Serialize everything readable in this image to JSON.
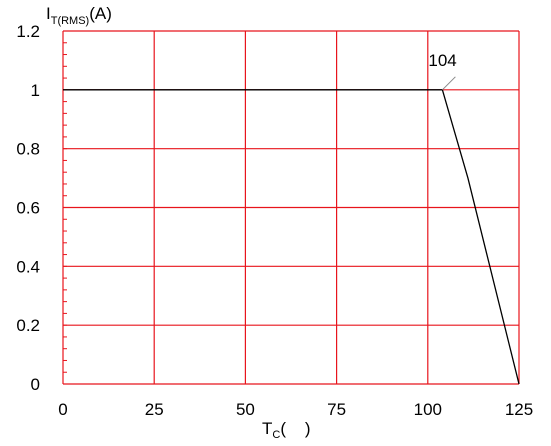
{
  "chart_data": {
    "type": "line",
    "xlabel_main": "T",
    "xlabel_sub": "C",
    "xlabel_unit": "(    )",
    "ylabel_main": "I",
    "ylabel_sub": "T(RMS)",
    "ylabel_unit": "(A)",
    "x_ticks": [
      "0",
      "25",
      "50",
      "75",
      "100",
      "125"
    ],
    "y_ticks": [
      "0",
      "0.2",
      "0.4",
      "0.6",
      "0.8",
      "1",
      "1.2"
    ],
    "x_tick_values": [
      0,
      25,
      50,
      75,
      100,
      125
    ],
    "y_tick_values": [
      0,
      0.2,
      0.4,
      0.6,
      0.8,
      1.0,
      1.2
    ],
    "xlim": [
      0,
      125
    ],
    "ylim": [
      0,
      1.2
    ],
    "grid": true,
    "series": [
      {
        "x": [
          0,
          104,
          111,
          125
        ],
        "y": [
          1.0,
          1.0,
          0.7,
          0.0
        ]
      }
    ],
    "annotations": [
      {
        "text": "104",
        "x": 104,
        "y": 1.0
      }
    ],
    "colors": {
      "grid": "#e8141c",
      "line": "#000000",
      "text": "#000000"
    }
  }
}
